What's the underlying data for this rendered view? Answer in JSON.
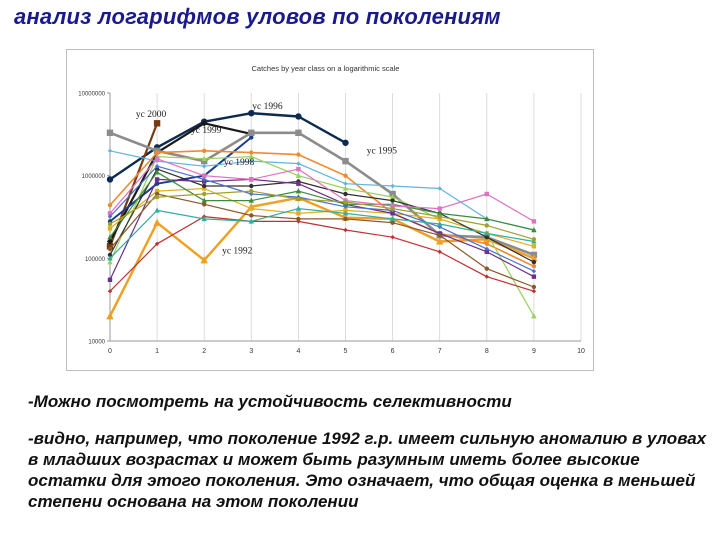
{
  "slide": {
    "title": "анализ логарифмов уловов по поколениям",
    "paragraph1": "-Можно посмотреть на устойчивость селективности",
    "paragraph2": "-видно, например, что поколение 1992 г.р. имеет сильную аномалию в уловах в младших возрастах и может быть разумным иметь более высокие остатки для этого поколения. Это означает, что общая оценка в меньшей степени основана на этом поколении"
  },
  "chart_data": {
    "type": "line",
    "title": "Catches by year class on a logarithmic scale",
    "xlabel": "",
    "ylabel": "",
    "y_scale": "log",
    "xlim": [
      0,
      10
    ],
    "ylim": [
      10000,
      10000000
    ],
    "x_ticks": [
      "0",
      "1",
      "2",
      "3",
      "4",
      "5",
      "6",
      "7",
      "8",
      "9",
      "10"
    ],
    "y_ticks": [
      {
        "value": 10000,
        "label": "10000"
      },
      {
        "value": 100000,
        "label": "100000"
      },
      {
        "value": 1000000,
        "label": "1000000"
      },
      {
        "value": 10000000,
        "label": "10000000"
      }
    ],
    "grid": "vertical",
    "series": [
      {
        "name": "yc 1996",
        "color": "#0d2a4f",
        "width": 2.4,
        "marker": "circle",
        "x": [
          0,
          1,
          2,
          3,
          4,
          5
        ],
        "y": [
          900000,
          2200000,
          4500000,
          5700000,
          5200000,
          2500000
        ]
      },
      {
        "name": "yc 2000",
        "color": "#7a3a10",
        "width": 2.2,
        "marker": "square",
        "x": [
          0,
          1
        ],
        "y": [
          140000,
          4300000
        ]
      },
      {
        "name": "yc 1999",
        "color": "#1a1a1a",
        "width": 2.2,
        "marker": "diamond",
        "x": [
          0,
          1,
          2,
          3
        ],
        "y": [
          160000,
          1900000,
          4300000,
          3200000
        ]
      },
      {
        "name": "yc 1998",
        "color": "#1d3d8c",
        "width": 2,
        "marker": "circle",
        "x": [
          0,
          1,
          2,
          3
        ],
        "y": [
          280000,
          800000,
          1000000,
          2900000
        ]
      },
      {
        "name": "yc 1995",
        "color": "#8c8c8c",
        "width": 2.6,
        "marker": "square",
        "x": [
          0,
          1,
          2,
          3,
          4,
          5,
          6,
          7,
          8,
          9
        ],
        "y": [
          3300000,
          2000000,
          1500000,
          3300000,
          3300000,
          1500000,
          600000,
          190000,
          180000,
          110000
        ]
      },
      {
        "name": "yc 1992",
        "color": "#f0a020",
        "width": 2.4,
        "marker": "triangle",
        "x": [
          0,
          1,
          2,
          3,
          4,
          5,
          6,
          7,
          8,
          9
        ],
        "y": [
          20000,
          270000,
          95000,
          420000,
          540000,
          310000,
          300000,
          160000,
          170000,
          100000
        ]
      },
      {
        "name": "",
        "color": "#f08a30",
        "width": 1.6,
        "marker": "circle",
        "x": [
          0,
          1,
          2,
          3,
          4,
          5,
          6,
          7,
          8,
          9
        ],
        "y": [
          440000,
          1900000,
          2000000,
          1900000,
          1800000,
          1000000,
          350000,
          200000,
          150000,
          80000
        ]
      },
      {
        "name": "",
        "color": "#5eb5e0",
        "width": 1.2,
        "marker": "diamond",
        "x": [
          0,
          1,
          2,
          3,
          4,
          5,
          6,
          7,
          8,
          9
        ],
        "y": [
          2000000,
          1500000,
          1300000,
          1500000,
          1400000,
          800000,
          750000,
          700000,
          300000,
          220000
        ]
      },
      {
        "name": "",
        "color": "#9ad060",
        "width": 1.2,
        "marker": "triangle",
        "x": [
          0,
          1,
          2,
          3,
          4,
          5,
          6,
          7,
          8,
          9
        ],
        "y": [
          90000,
          1700000,
          1600000,
          1700000,
          1000000,
          700000,
          550000,
          300000,
          200000,
          20000
        ]
      },
      {
        "name": "",
        "color": "#e0b020",
        "width": 1.2,
        "marker": "square",
        "x": [
          0,
          1,
          2,
          3,
          4,
          5,
          6,
          7,
          8,
          9
        ],
        "y": [
          230000,
          650000,
          700000,
          400000,
          350000,
          380000,
          350000,
          300000,
          200000,
          140000
        ]
      },
      {
        "name": "",
        "color": "#c03030",
        "width": 1.2,
        "marker": "diamond",
        "x": [
          0,
          1,
          2,
          3,
          4,
          5,
          6,
          7,
          8,
          9
        ],
        "y": [
          40000,
          150000,
          320000,
          280000,
          280000,
          220000,
          180000,
          120000,
          60000,
          40000
        ]
      },
      {
        "name": "",
        "color": "#303030",
        "width": 1.2,
        "marker": "circle",
        "x": [
          0,
          1,
          2,
          3,
          4,
          5,
          6,
          7,
          8,
          9
        ],
        "y": [
          110000,
          1200000,
          750000,
          750000,
          850000,
          600000,
          500000,
          350000,
          180000,
          90000
        ]
      },
      {
        "name": "",
        "color": "#6b2f8c",
        "width": 1.2,
        "marker": "square",
        "x": [
          0,
          1,
          2,
          3,
          4,
          5,
          6,
          7,
          8,
          9
        ],
        "y": [
          55000,
          900000,
          850000,
          900000,
          800000,
          450000,
          350000,
          200000,
          120000,
          60000
        ]
      },
      {
        "name": "",
        "color": "#3c8c3c",
        "width": 1.2,
        "marker": "triangle",
        "x": [
          0,
          1,
          2,
          3,
          4,
          5,
          6,
          7,
          8,
          9
        ],
        "y": [
          180000,
          1100000,
          500000,
          500000,
          650000,
          450000,
          450000,
          350000,
          300000,
          220000
        ]
      },
      {
        "name": "",
        "color": "#e070c0",
        "width": 1.2,
        "marker": "square",
        "x": [
          0,
          1,
          2,
          3,
          4,
          5,
          6,
          7,
          8,
          9
        ],
        "y": [
          350000,
          1600000,
          1000000,
          900000,
          1200000,
          500000,
          430000,
          400000,
          600000,
          280000
        ]
      },
      {
        "name": "",
        "color": "#8b5a2b",
        "width": 1.2,
        "marker": "circle",
        "x": [
          0,
          1,
          2,
          3,
          4,
          5,
          6,
          7,
          8,
          9
        ],
        "y": [
          130000,
          600000,
          450000,
          330000,
          300000,
          300000,
          270000,
          190000,
          75000,
          45000
        ]
      },
      {
        "name": "",
        "color": "#4a6fd0",
        "width": 1.2,
        "marker": "diamond",
        "x": [
          0,
          1,
          2,
          3,
          4,
          5,
          6,
          7,
          8,
          9
        ],
        "y": [
          320000,
          1300000,
          900000,
          600000,
          550000,
          420000,
          380000,
          240000,
          130000,
          70000
        ]
      },
      {
        "name": "",
        "color": "#30b0a0",
        "width": 1.2,
        "marker": "triangle",
        "x": [
          0,
          1,
          2,
          3,
          4,
          5,
          6,
          7,
          8,
          9
        ],
        "y": [
          100000,
          380000,
          300000,
          280000,
          400000,
          350000,
          300000,
          260000,
          200000,
          160000
        ]
      },
      {
        "name": "",
        "color": "#a0a030",
        "width": 1.2,
        "marker": "circle",
        "x": [
          0,
          1,
          2,
          3,
          4,
          5,
          6,
          7,
          8,
          9
        ],
        "y": [
          260000,
          550000,
          600000,
          650000,
          520000,
          480000,
          400000,
          320000,
          250000,
          170000
        ]
      }
    ],
    "labels": [
      {
        "text": "yc 2000",
        "x": 0.55,
        "y": 5100000
      },
      {
        "text": "yc 1996",
        "x": 3.02,
        "y": 6400000
      },
      {
        "text": "yc 1999",
        "x": 1.72,
        "y": 3300000
      },
      {
        "text": "yc 1998",
        "x": 2.42,
        "y": 1350000
      },
      {
        "text": "yc 1995",
        "x": 5.45,
        "y": 1850000
      },
      {
        "text": "yc 1992",
        "x": 2.38,
        "y": 115000
      }
    ]
  }
}
